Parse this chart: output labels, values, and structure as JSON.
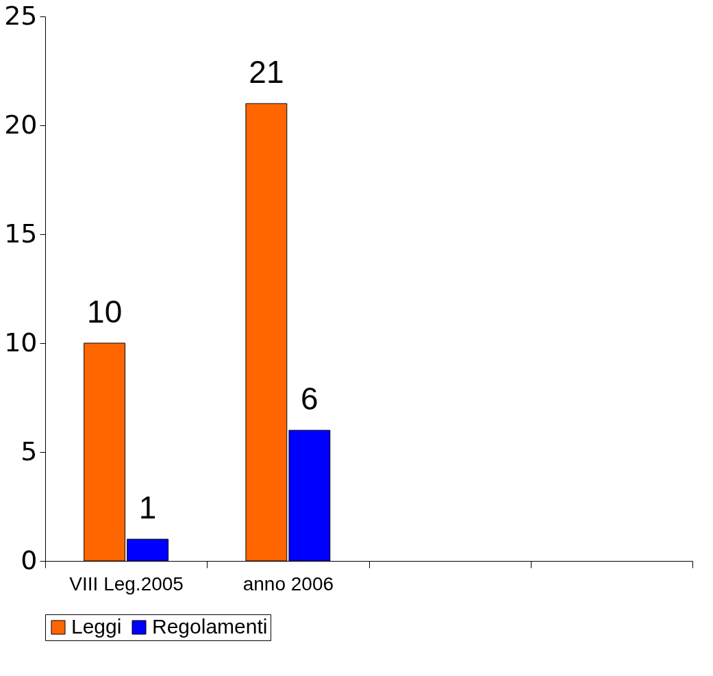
{
  "chart_data": {
    "type": "bar",
    "categories": [
      "VIII Leg.2005",
      "anno 2006",
      null,
      null
    ],
    "series": [
      {
        "name": "Leggi",
        "color": "#ff6600",
        "values": [
          10,
          21,
          null,
          null
        ]
      },
      {
        "name": "Regolamenti",
        "color": "#0000ff",
        "values": [
          1,
          6,
          null,
          null
        ]
      }
    ],
    "ylim": [
      0,
      25
    ],
    "yticks": [
      0,
      5,
      10,
      15,
      20,
      25
    ],
    "grid": false,
    "legend": "bottom",
    "data_labels": true
  }
}
